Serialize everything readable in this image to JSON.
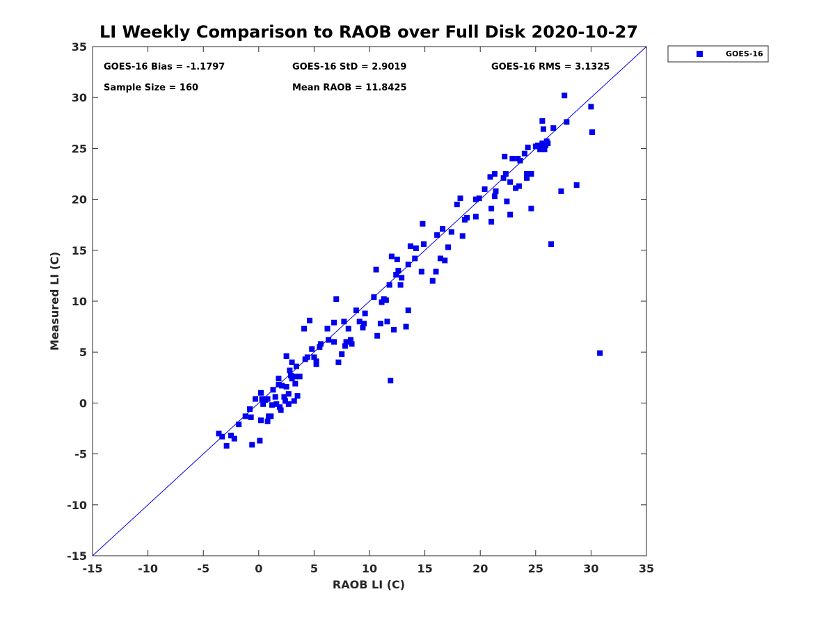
{
  "chart_data": {
    "type": "scatter",
    "title": "LI Weekly Comparison to RAOB over Full Disk 2020-10-27",
    "xlabel": "RAOB LI (C)",
    "ylabel": "Measured LI (C)",
    "xlim": [
      -15,
      35
    ],
    "ylim": [
      -15,
      35
    ],
    "xticks": [
      -15,
      -10,
      -5,
      0,
      5,
      10,
      15,
      20,
      25,
      30,
      35
    ],
    "yticks": [
      -15,
      -10,
      -5,
      0,
      5,
      10,
      15,
      20,
      25,
      30,
      35
    ],
    "grid": false,
    "legend_position": "outside-top-right",
    "reference_line": "1:1",
    "stats": {
      "bias": "GOES-16 Bias = -1.1797",
      "std": "GOES-16 StD = 2.9019",
      "rms": "GOES-16 RMS = 3.1325",
      "sample_size": "Sample Size = 160",
      "mean_raob": "Mean RAOB = 11.8425"
    },
    "colors": {
      "series": "#0000ee",
      "line": "#0000ee",
      "axis": "#262626"
    },
    "series": [
      {
        "name": "GOES-16",
        "marker": "square",
        "points": [
          [
            -3.6,
            -3.0
          ],
          [
            -3.3,
            -3.3
          ],
          [
            -2.9,
            -4.2
          ],
          [
            -2.5,
            -3.2
          ],
          [
            -2.2,
            -3.5
          ],
          [
            -1.8,
            -2.1
          ],
          [
            -1.2,
            -1.3
          ],
          [
            -0.8,
            -0.6
          ],
          [
            -0.7,
            -1.4
          ],
          [
            -0.6,
            -4.1
          ],
          [
            -0.3,
            0.4
          ],
          [
            0.1,
            -3.7
          ],
          [
            0.2,
            1.0
          ],
          [
            0.3,
            0.4
          ],
          [
            0.2,
            -1.7
          ],
          [
            0.4,
            -0.1
          ],
          [
            0.6,
            0.3
          ],
          [
            0.8,
            0.4
          ],
          [
            0.8,
            -1.8
          ],
          [
            0.9,
            -1.3
          ],
          [
            1.1,
            -1.3
          ],
          [
            1.2,
            -0.2
          ],
          [
            1.3,
            1.3
          ],
          [
            1.5,
            0.6
          ],
          [
            1.6,
            -0.1
          ],
          [
            1.8,
            1.8
          ],
          [
            1.8,
            2.4
          ],
          [
            1.9,
            -0.4
          ],
          [
            2.0,
            -0.7
          ],
          [
            2.1,
            1.7
          ],
          [
            2.3,
            0.6
          ],
          [
            2.4,
            0.2
          ],
          [
            2.5,
            1.6
          ],
          [
            2.5,
            4.6
          ],
          [
            2.7,
            0.9
          ],
          [
            2.7,
            -0.1
          ],
          [
            2.8,
            3.2
          ],
          [
            2.9,
            2.7
          ],
          [
            3.0,
            2.4
          ],
          [
            3.0,
            4.0
          ],
          [
            3.2,
            0.2
          ],
          [
            3.3,
            1.9
          ],
          [
            3.3,
            2.6
          ],
          [
            3.4,
            3.6
          ],
          [
            3.5,
            0.7
          ],
          [
            3.7,
            2.6
          ],
          [
            4.1,
            7.3
          ],
          [
            4.2,
            4.3
          ],
          [
            4.4,
            4.5
          ],
          [
            4.6,
            8.1
          ],
          [
            4.8,
            5.3
          ],
          [
            5.0,
            4.5
          ],
          [
            5.2,
            4.1
          ],
          [
            5.2,
            3.8
          ],
          [
            5.5,
            5.5
          ],
          [
            5.6,
            5.8
          ],
          [
            6.2,
            7.3
          ],
          [
            6.3,
            6.2
          ],
          [
            6.8,
            6.0
          ],
          [
            6.8,
            7.9
          ],
          [
            7.0,
            10.2
          ],
          [
            7.2,
            4.0
          ],
          [
            7.5,
            4.8
          ],
          [
            7.7,
            8.0
          ],
          [
            7.8,
            5.6
          ],
          [
            7.9,
            6.0
          ],
          [
            8.1,
            7.3
          ],
          [
            8.3,
            6.2
          ],
          [
            8.4,
            5.8
          ],
          [
            8.8,
            9.1
          ],
          [
            9.1,
            8.0
          ],
          [
            9.4,
            7.4
          ],
          [
            9.5,
            7.8
          ],
          [
            9.6,
            8.8
          ],
          [
            10.4,
            10.4
          ],
          [
            10.6,
            13.1
          ],
          [
            10.7,
            6.6
          ],
          [
            11.0,
            7.8
          ],
          [
            11.1,
            9.9
          ],
          [
            11.3,
            10.2
          ],
          [
            11.5,
            10.1
          ],
          [
            11.6,
            8.0
          ],
          [
            11.8,
            11.6
          ],
          [
            11.9,
            2.2
          ],
          [
            12.0,
            14.4
          ],
          [
            12.2,
            7.2
          ],
          [
            12.4,
            12.6
          ],
          [
            12.5,
            14.1
          ],
          [
            12.6,
            13.0
          ],
          [
            12.8,
            11.6
          ],
          [
            12.9,
            12.3
          ],
          [
            13.3,
            7.5
          ],
          [
            13.5,
            9.1
          ],
          [
            13.5,
            13.6
          ],
          [
            13.7,
            15.4
          ],
          [
            14.1,
            14.2
          ],
          [
            14.2,
            15.2
          ],
          [
            14.7,
            12.9
          ],
          [
            14.8,
            17.6
          ],
          [
            14.9,
            15.6
          ],
          [
            15.7,
            12.0
          ],
          [
            16.0,
            12.9
          ],
          [
            16.4,
            14.2
          ],
          [
            16.6,
            17.1
          ],
          [
            16.8,
            14.0
          ],
          [
            17.1,
            15.3
          ],
          [
            17.4,
            16.8
          ],
          [
            17.9,
            19.5
          ],
          [
            18.2,
            20.1
          ],
          [
            18.4,
            16.4
          ],
          [
            18.6,
            18.0
          ],
          [
            18.8,
            18.2
          ],
          [
            19.6,
            20.0
          ],
          [
            19.6,
            18.3
          ],
          [
            20.4,
            21.0
          ],
          [
            20.9,
            22.2
          ],
          [
            21.0,
            19.1
          ],
          [
            21.0,
            17.8
          ],
          [
            21.3,
            20.3
          ],
          [
            21.3,
            22.5
          ],
          [
            21.4,
            20.8
          ],
          [
            22.1,
            22.1
          ],
          [
            22.2,
            24.2
          ],
          [
            22.3,
            22.5
          ],
          [
            22.4,
            19.8
          ],
          [
            22.7,
            21.7
          ],
          [
            22.7,
            18.5
          ],
          [
            22.9,
            24.0
          ],
          [
            23.2,
            21.1
          ],
          [
            23.4,
            24.0
          ],
          [
            23.5,
            21.3
          ],
          [
            23.6,
            23.8
          ],
          [
            24.0,
            24.5
          ],
          [
            24.2,
            22.1
          ],
          [
            24.2,
            22.5
          ],
          [
            24.3,
            25.1
          ],
          [
            24.6,
            19.1
          ],
          [
            24.6,
            22.5
          ],
          [
            25.2,
            25.3
          ],
          [
            25.4,
            24.9
          ],
          [
            25.5,
            25.2
          ],
          [
            25.6,
            25.5
          ],
          [
            25.6,
            27.7
          ],
          [
            25.7,
            26.9
          ],
          [
            25.8,
            24.9
          ],
          [
            25.9,
            25.3
          ],
          [
            26.0,
            25.7
          ],
          [
            26.1,
            25.5
          ],
          [
            26.4,
            15.6
          ],
          [
            26.6,
            27.0
          ],
          [
            27.3,
            20.8
          ],
          [
            27.6,
            30.2
          ],
          [
            27.8,
            27.6
          ],
          [
            28.7,
            21.4
          ],
          [
            30.0,
            29.1
          ],
          [
            30.1,
            26.6
          ],
          [
            30.8,
            4.9
          ],
          [
            25.0,
            25.2
          ],
          [
            19.9,
            20.1
          ],
          [
            16.1,
            16.5
          ]
        ]
      }
    ]
  }
}
